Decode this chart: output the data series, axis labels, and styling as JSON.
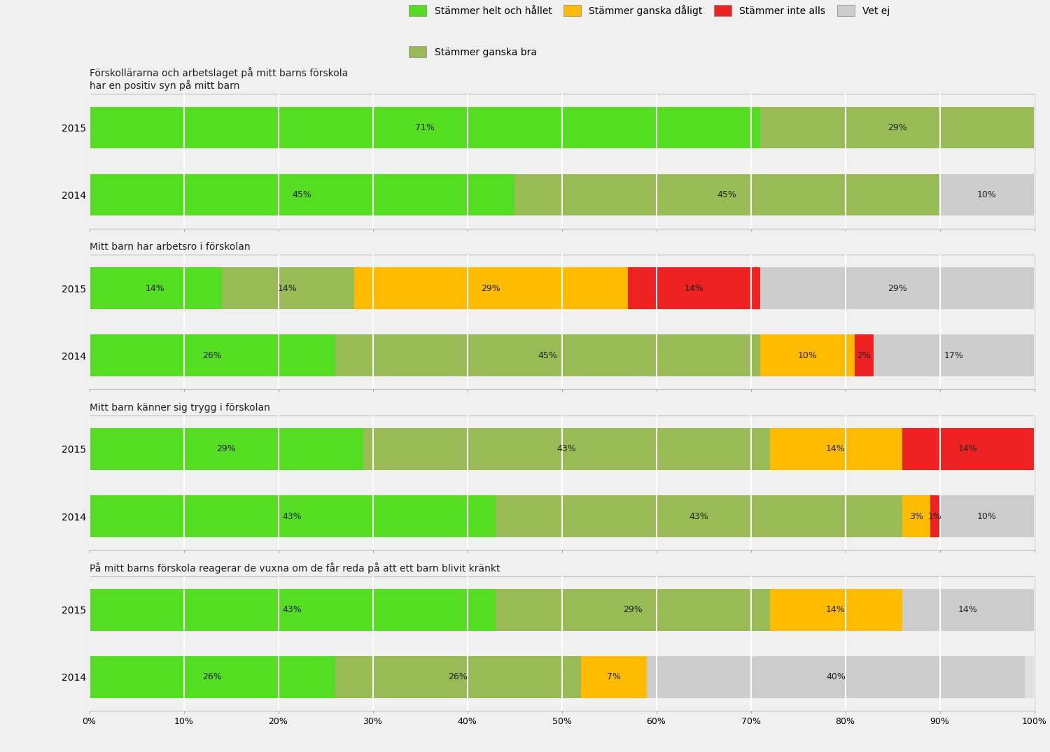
{
  "questions": [
    {
      "title": "Förskollärarna och arbetslaget på mitt barns förskola\nhar en positiv syn på mitt barn",
      "rows": [
        {
          "year": "2015",
          "values": [
            71,
            29,
            0,
            0,
            0
          ]
        },
        {
          "year": "2014",
          "values": [
            45,
            45,
            0,
            0,
            10
          ]
        }
      ]
    },
    {
      "title": "Mitt barn har arbetsro i förskolan",
      "rows": [
        {
          "year": "2015",
          "values": [
            14,
            14,
            29,
            14,
            29
          ]
        },
        {
          "year": "2014",
          "values": [
            26,
            45,
            10,
            2,
            17
          ]
        }
      ]
    },
    {
      "title": "Mitt barn känner sig trygg i förskolan",
      "rows": [
        {
          "year": "2015",
          "values": [
            29,
            43,
            14,
            14,
            0
          ]
        },
        {
          "year": "2014",
          "values": [
            43,
            43,
            3,
            1,
            10
          ]
        }
      ]
    },
    {
      "title": "På mitt barns förskola reagerar de vuxna om de får reda på att ett barn blivit kränkt",
      "rows": [
        {
          "year": "2015",
          "values": [
            43,
            29,
            14,
            0,
            14
          ]
        },
        {
          "year": "2014",
          "values": [
            26,
            26,
            7,
            0,
            40
          ]
        }
      ]
    }
  ],
  "colors": [
    "#55dd22",
    "#99bb55",
    "#ffbb00",
    "#ee2222",
    "#cccccc"
  ],
  "legend_labels": [
    "Stämmer helt och hållet",
    "Stämmer ganska bra",
    "Stämmer ganska dåligt",
    "Stämmer inte alls",
    "Vet ej"
  ],
  "background_color": "#f0f0f0",
  "bar_bg_color": "#e0e0e0",
  "grid_color": "#ffffff",
  "label_color": "#222222",
  "title_fontsize": 10,
  "tick_fontsize": 9,
  "bar_height": 0.62
}
